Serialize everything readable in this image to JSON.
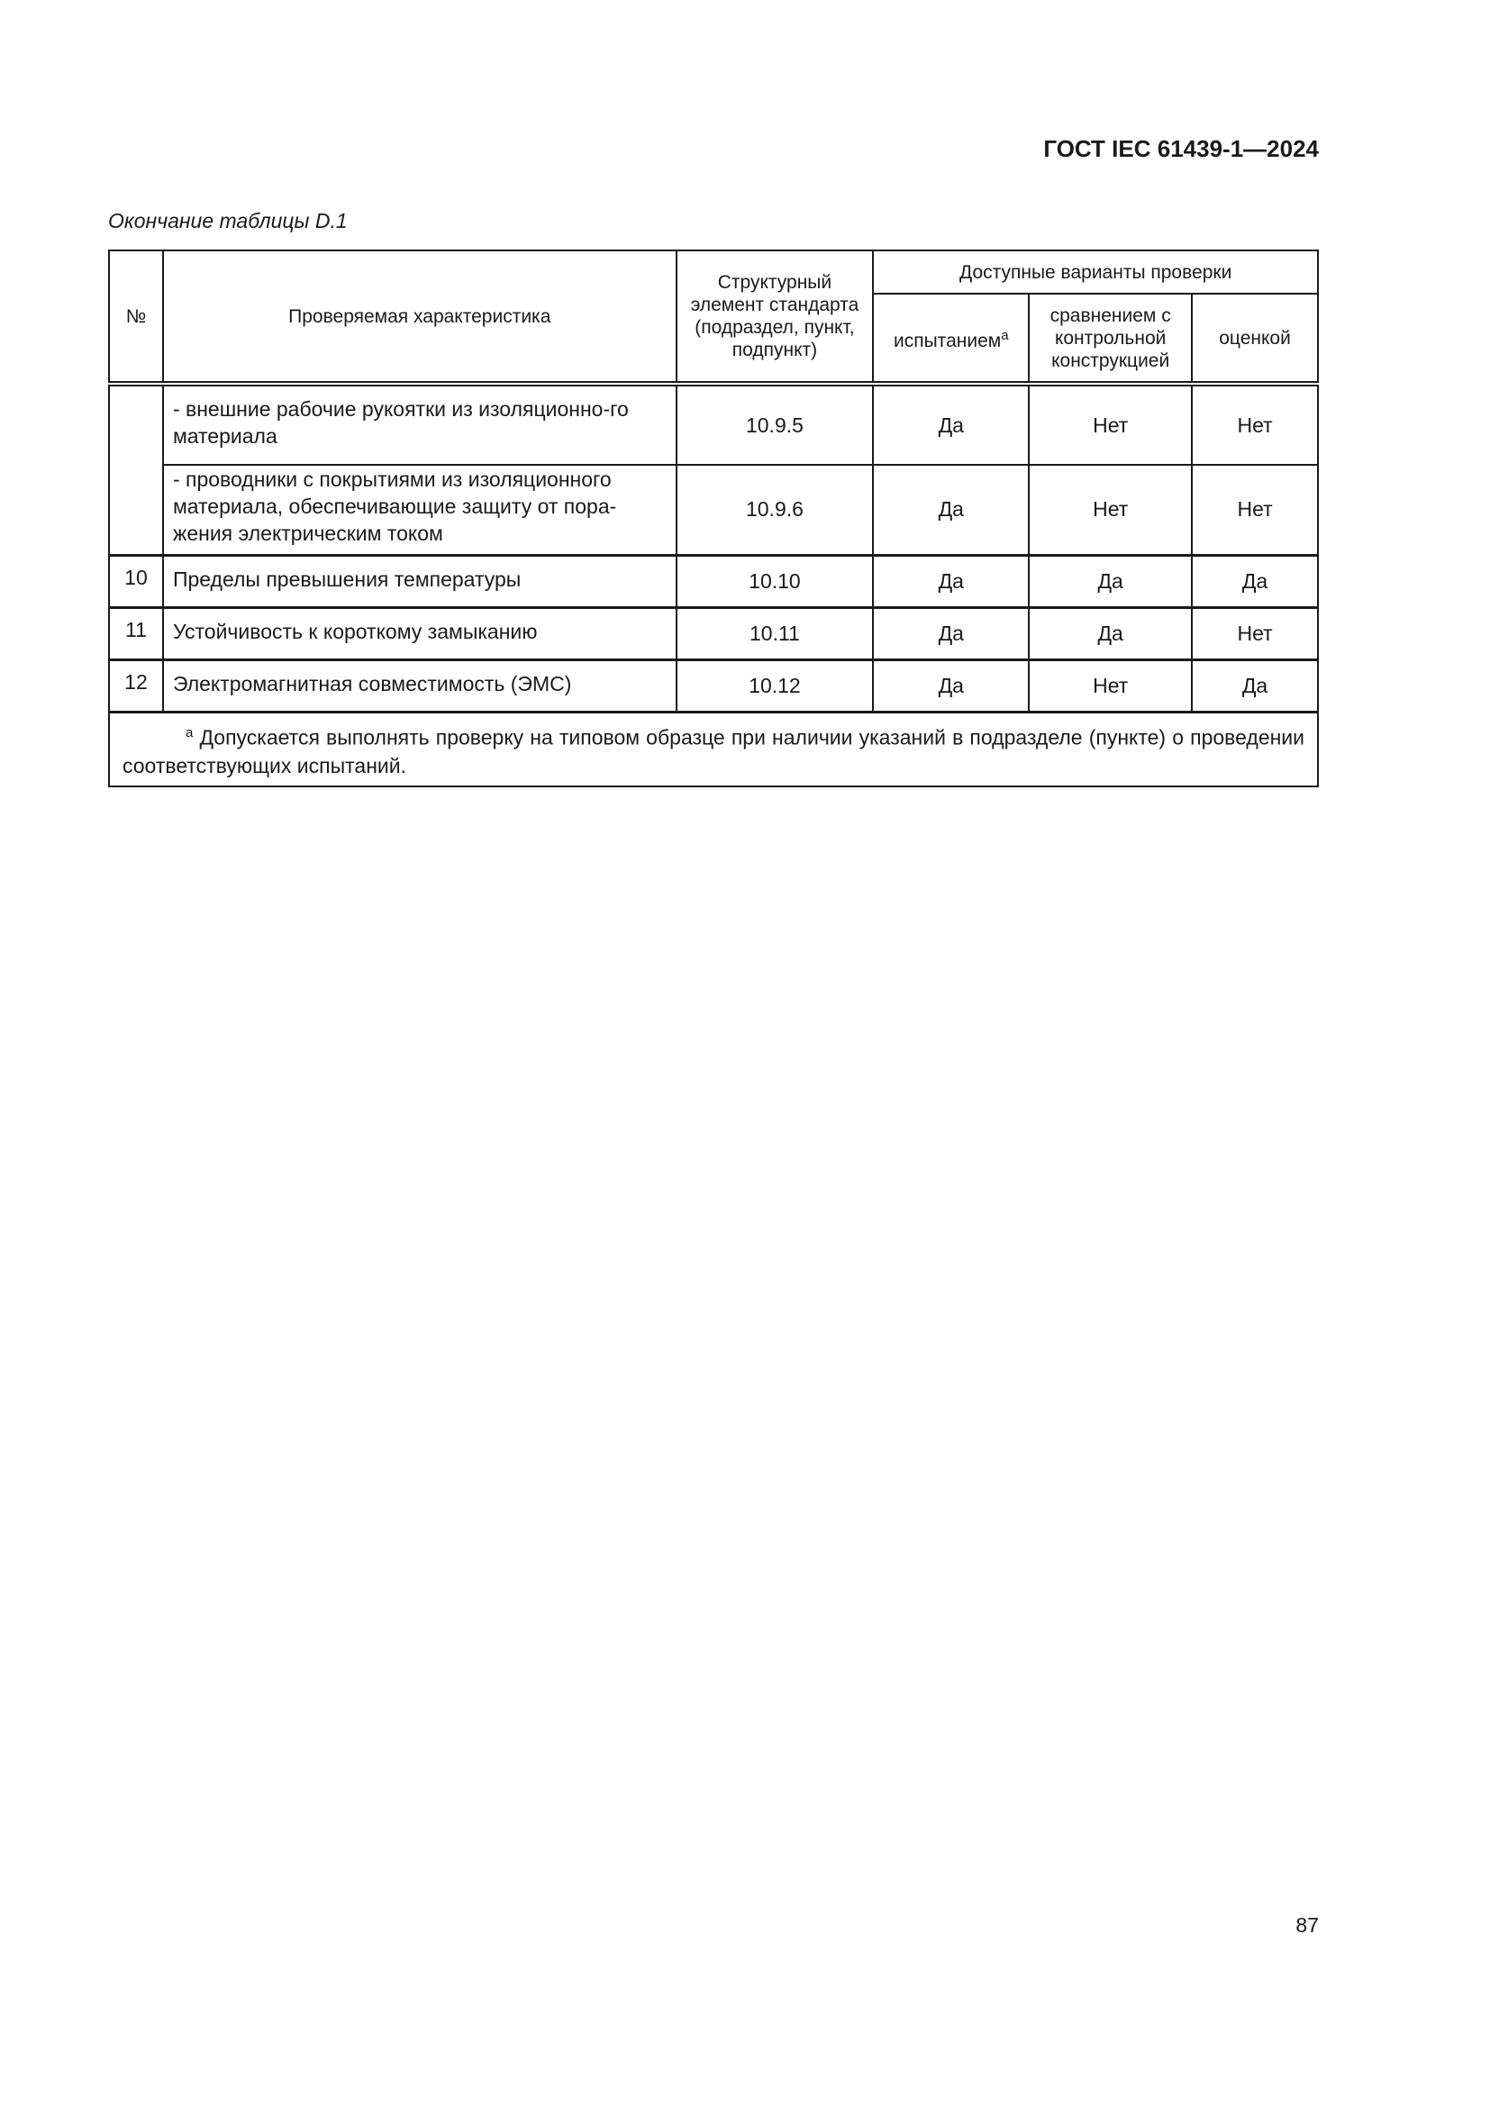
{
  "header": {
    "doc_id": "ГОСТ IEC 61439-1—2024"
  },
  "caption": "Окончание таблицы D.1",
  "table": {
    "headers": {
      "no": "№",
      "characteristic": "Проверяемая характеристика",
      "element": "Структурный элемент стандарта (подраздел, пункт, подпункт)",
      "variants": "Доступные варианты проверки",
      "test": "испытанием",
      "test_sup": "a",
      "compare": "сравнением с контрольной конструкцией",
      "assess": "оценкой"
    },
    "rows": [
      {
        "no": "",
        "items": [
          {
            "text": "-  внешние рабочие рукоятки из изоляционно-го материала",
            "clause": "10.9.5",
            "test": "Да",
            "compare": "Нет",
            "assess": "Нет"
          },
          {
            "text": "-  проводники с покрытиями из изоляционного материала, обеспечивающие защиту от пора-жения электрическим током",
            "clause": "10.9.6",
            "test": "Да",
            "compare": "Нет",
            "assess": "Нет"
          }
        ]
      },
      {
        "no": "10",
        "text": "Пределы превышения температуры",
        "clause": "10.10",
        "test": "Да",
        "compare": "Да",
        "assess": "Да"
      },
      {
        "no": "11",
        "text": "Устойчивость к короткому замыканию",
        "clause": "10.11",
        "test": "Да",
        "compare": "Да",
        "assess": "Нет"
      },
      {
        "no": "12",
        "text": "Электромагнитная совместимость (ЭМС)",
        "clause": "10.12",
        "test": "Да",
        "compare": "Нет",
        "assess": "Да"
      }
    ],
    "footnote_mark": "a",
    "footnote": "Допускается выполнять проверку на типовом образце при наличии указаний в подразделе (пункте) о проведении соответствующих испытаний."
  },
  "page_number": "87"
}
